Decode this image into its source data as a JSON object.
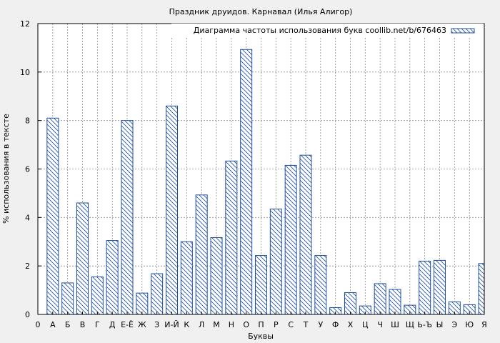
{
  "chart_data": {
    "type": "bar",
    "title": "Праздник друидов. Карнавал (Илья Алигор)",
    "xlabel": "Буквы",
    "ylabel": "% использования в тексте",
    "ylim": [
      0,
      12
    ],
    "yticks": [
      "0",
      "2",
      "4",
      "6",
      "8",
      "10",
      "12"
    ],
    "x_origin_label": "0",
    "grid": true,
    "legend_position": "top-right",
    "series": [
      {
        "name": "Диаграмма частоты использования букв coollib.net/b/676463",
        "fill_pattern": "hatched",
        "color": "#1f4f9f"
      }
    ],
    "categories": [
      "А",
      "Б",
      "В",
      "Г",
      "Д",
      "Е-Ё",
      "Ж",
      "З",
      "И-Й",
      "К",
      "Л",
      "М",
      "Н",
      "О",
      "П",
      "Р",
      "С",
      "Т",
      "У",
      "Ф",
      "Х",
      "Ц",
      "Ч",
      "Ш",
      "Щ",
      "Ь-Ъ",
      "Ы",
      "Э",
      "Ю",
      "Я"
    ],
    "values": [
      8.1,
      1.3,
      4.6,
      1.55,
      3.05,
      8.0,
      0.88,
      1.68,
      8.6,
      3.0,
      4.93,
      3.17,
      6.33,
      10.93,
      2.43,
      4.35,
      6.15,
      6.57,
      2.43,
      0.28,
      0.9,
      0.35,
      1.27,
      1.03,
      0.38,
      2.2,
      2.23,
      0.52,
      0.4,
      2.1
    ]
  }
}
